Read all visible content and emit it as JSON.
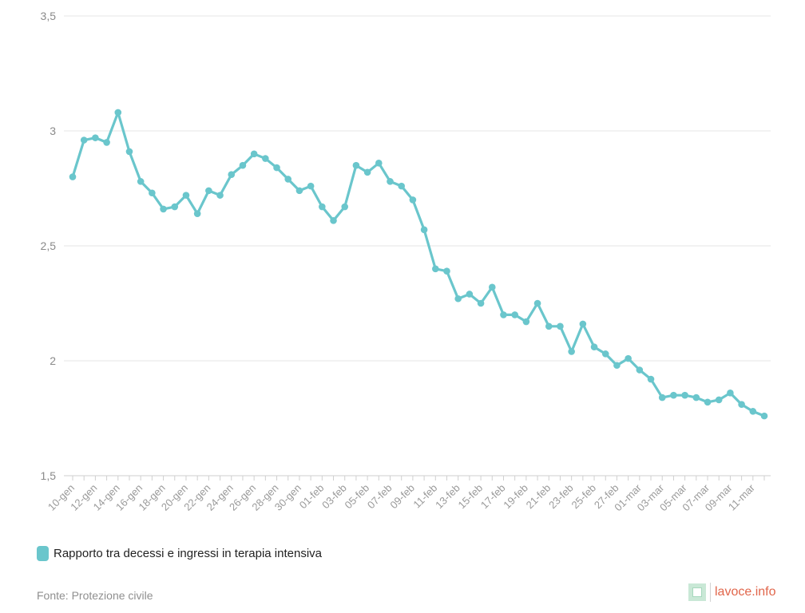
{
  "chart_data": {
    "type": "line",
    "y_ticks": [
      "3,5",
      "3",
      "2,5",
      "2",
      "1,5"
    ],
    "ylim": [
      1.5,
      3.5
    ],
    "x_tick_labels": [
      "10-gen",
      "12-gen",
      "14-gen",
      "16-gen",
      "18-gen",
      "20-gen",
      "22-gen",
      "24-gen",
      "26-gen",
      "28-gen",
      "30-gen",
      "01-feb",
      "03-feb",
      "05-feb",
      "07-feb",
      "09-feb",
      "11-feb",
      "13-feb",
      "15-feb",
      "17-feb",
      "19-feb",
      "21-feb",
      "23-feb",
      "25-feb",
      "27-feb",
      "01-mar",
      "03-mar",
      "05-mar",
      "07-mar",
      "09-mar",
      "11-mar"
    ],
    "x_start": "10-gen",
    "x_end": "12-mar",
    "grid": "horizontal",
    "legend_position": "bottom-left",
    "series": [
      {
        "name": "Rapporto tra decessi e ingressi in terapia intensiva",
        "color": "#6ac6cc",
        "values": [
          2.8,
          2.96,
          2.97,
          2.95,
          3.08,
          2.91,
          2.78,
          2.73,
          2.66,
          2.67,
          2.72,
          2.64,
          2.74,
          2.72,
          2.81,
          2.85,
          2.9,
          2.88,
          2.84,
          2.79,
          2.74,
          2.76,
          2.67,
          2.61,
          2.67,
          2.85,
          2.82,
          2.86,
          2.78,
          2.76,
          2.7,
          2.57,
          2.4,
          2.39,
          2.27,
          2.29,
          2.25,
          2.32,
          2.2,
          2.2,
          2.17,
          2.25,
          2.15,
          2.15,
          2.04,
          2.16,
          2.06,
          2.03,
          1.98,
          2.01,
          1.96,
          1.92,
          1.84,
          1.85,
          1.85,
          1.84,
          1.82,
          1.83,
          1.86,
          1.81,
          1.78,
          1.76
        ]
      }
    ]
  },
  "legend": {
    "label": "Rapporto tra decessi e ingressi in terapia intensiva",
    "color": "#6ac6cc"
  },
  "footer": {
    "source": "Fonte: Protezione civile",
    "brand": "lavoce.info"
  }
}
